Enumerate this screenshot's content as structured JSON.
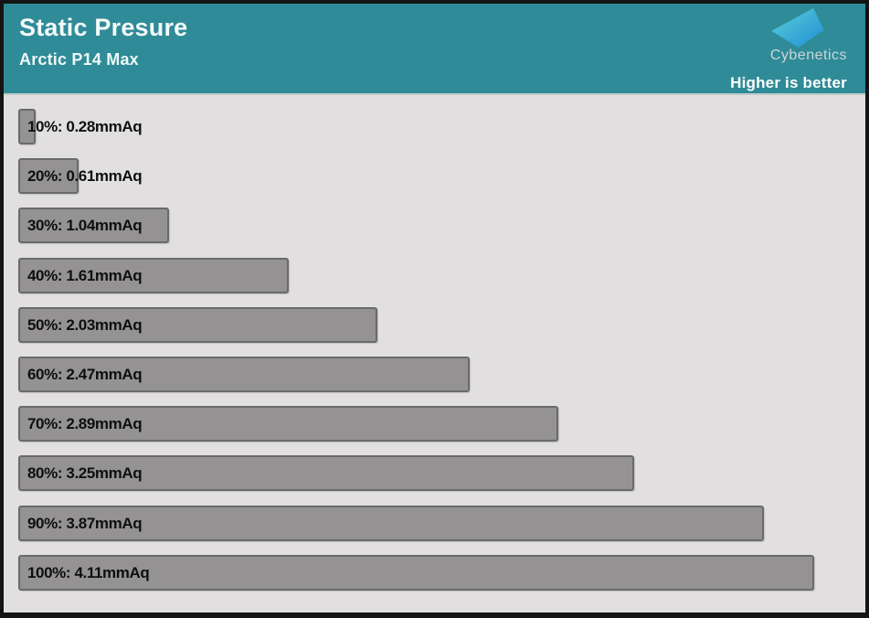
{
  "header": {
    "title": "Static Presure",
    "subtitle": "Arctic P14 Max",
    "brand": "Cybenetics",
    "note": "Higher is better",
    "bg_color": "#2f8b97",
    "logo_color_top": "#5bd0da",
    "logo_color_bottom": "#1f8ed2"
  },
  "chart_data": {
    "type": "bar",
    "orientation": "horizontal",
    "title": "Static Presure",
    "subtitle": "Arctic P14 Max",
    "unit": "mmAq",
    "higher_is_better": true,
    "categories": [
      "10%",
      "20%",
      "30%",
      "40%",
      "50%",
      "60%",
      "70%",
      "80%",
      "90%",
      "100%"
    ],
    "values": [
      0.28,
      0.61,
      1.04,
      1.61,
      2.03,
      2.47,
      2.89,
      3.25,
      3.87,
      4.11
    ],
    "labels": [
      "10%: 0.28mmAq",
      "20%: 0.61mmAq",
      "30%: 1.04mmAq",
      "40%: 1.61mmAq",
      "50%: 2.03mmAq",
      "60%: 2.47mmAq",
      "70%: 2.89mmAq",
      "80%: 3.25mmAq",
      "90%: 3.87mmAq",
      "100%: 4.11mmAq"
    ],
    "bar_fill": "#949292",
    "bar_border": "#6a6a6a",
    "plot_bg": "#e1dfdf",
    "label_color": "#0f0f0f",
    "grid": false,
    "legend": false
  }
}
